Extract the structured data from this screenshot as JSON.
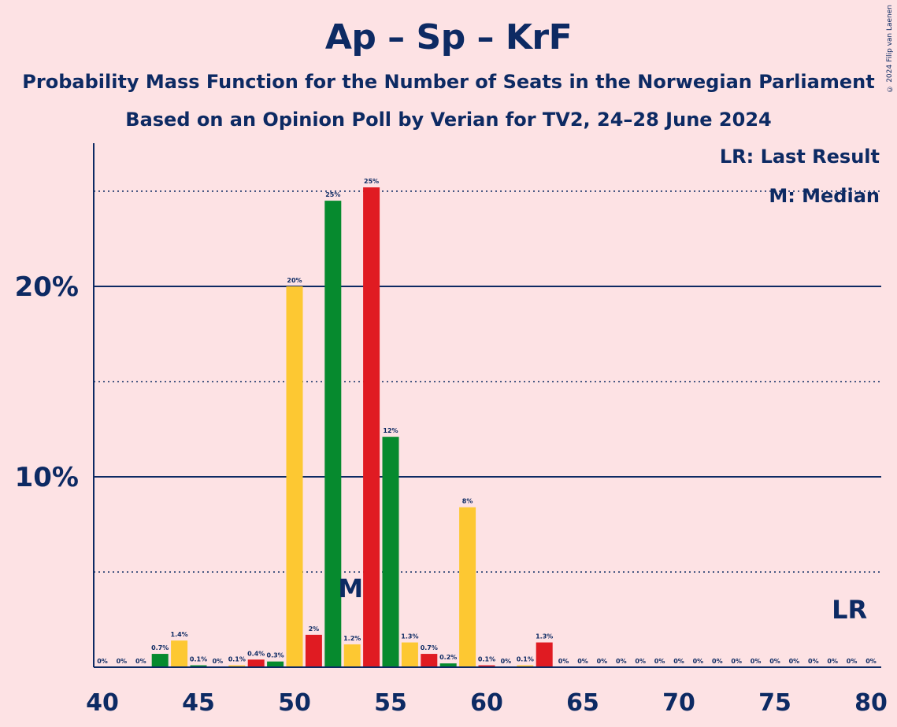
{
  "title": "Ap – Sp – KrF",
  "subtitle1": "Probability Mass Function for the Number of Seats in the Norwegian Parliament",
  "subtitle2": "Based on an Opinion Poll by Verian for TV2, 24–28 June 2024",
  "copyright": "© 2024 Filip van Laenen",
  "legend": {
    "lr": "LR: Last Result",
    "median": "M: Median"
  },
  "markers": {
    "median_label": "M",
    "median_seat": 53,
    "lr_label": "LR",
    "lr_seat": 79
  },
  "colors": {
    "background": "#fde2e4",
    "text": "#0d2a63",
    "green": "#068a2e",
    "red": "#e01b22",
    "yellow": "#fdc832"
  },
  "chart_data": {
    "type": "bar",
    "x": [
      40,
      41,
      42,
      43,
      44,
      45,
      46,
      47,
      48,
      49,
      50,
      51,
      52,
      53,
      54,
      55,
      56,
      57,
      58,
      59,
      60,
      61,
      62,
      63,
      64,
      65,
      66,
      67,
      68,
      69,
      70,
      71,
      72,
      73,
      74,
      75,
      76,
      77,
      78,
      79,
      80
    ],
    "values": [
      0,
      0,
      0,
      0.7,
      1.4,
      0.1,
      0,
      0.1,
      0.4,
      0.3,
      20,
      1.7,
      24.5,
      1.2,
      25.2,
      12.1,
      1.3,
      0.7,
      0.2,
      8.4,
      0.1,
      0,
      0.1,
      1.3,
      0,
      0,
      0,
      0,
      0,
      0,
      0,
      0,
      0,
      0,
      0,
      0,
      0,
      0,
      0,
      0,
      0
    ],
    "labels": [
      "0%",
      "0%",
      "0%",
      "0.7%",
      "1.4%",
      "0.1%",
      "0%",
      "0.1%",
      "0.4%",
      "0.3%",
      "20%",
      "2%",
      "25%",
      "1.2%",
      "25%",
      "12%",
      "1.3%",
      "0.7%",
      "0.2%",
      "8%",
      "0.1%",
      "0%",
      "0.1%",
      "1.3%",
      "0%",
      "0%",
      "0%",
      "0%",
      "0%",
      "0%",
      "0%",
      "0%",
      "0%",
      "0%",
      "0%",
      "0%",
      "0%",
      "0%",
      "0%",
      "0%",
      "0%"
    ],
    "bar_colors": [
      "#068a2e",
      "#e01b22",
      "#fdc832",
      "#068a2e",
      "#fdc832",
      "#068a2e",
      "#e01b22",
      "#fdc832",
      "#e01b22",
      "#068a2e",
      "#fdc832",
      "#e01b22",
      "#068a2e",
      "#fdc832",
      "#e01b22",
      "#068a2e",
      "#fdc832",
      "#e01b22",
      "#068a2e",
      "#fdc832",
      "#e01b22",
      "#068a2e",
      "#fdc832",
      "#e01b22",
      "#068a2e",
      "#fdc832",
      "#e01b22",
      "#068a2e",
      "#fdc832",
      "#e01b22",
      "#068a2e",
      "#fdc832",
      "#e01b22",
      "#068a2e",
      "#fdc832",
      "#e01b22",
      "#068a2e",
      "#fdc832",
      "#e01b22",
      "#068a2e",
      "#fdc832"
    ],
    "xlim": [
      40,
      80
    ],
    "ylim": [
      0,
      27.5
    ],
    "x_ticks": [
      40,
      45,
      50,
      55,
      60,
      65,
      70,
      75,
      80
    ],
    "x_tick_labels": [
      "40",
      "45",
      "50",
      "55",
      "60",
      "65",
      "70",
      "75",
      "80"
    ],
    "y_ticks_major": [
      10,
      20
    ],
    "y_tick_labels": [
      "10%",
      "20%"
    ],
    "y_ticks_minor": [
      5,
      15,
      25
    ],
    "grid": true,
    "legend_position": "top-right"
  }
}
